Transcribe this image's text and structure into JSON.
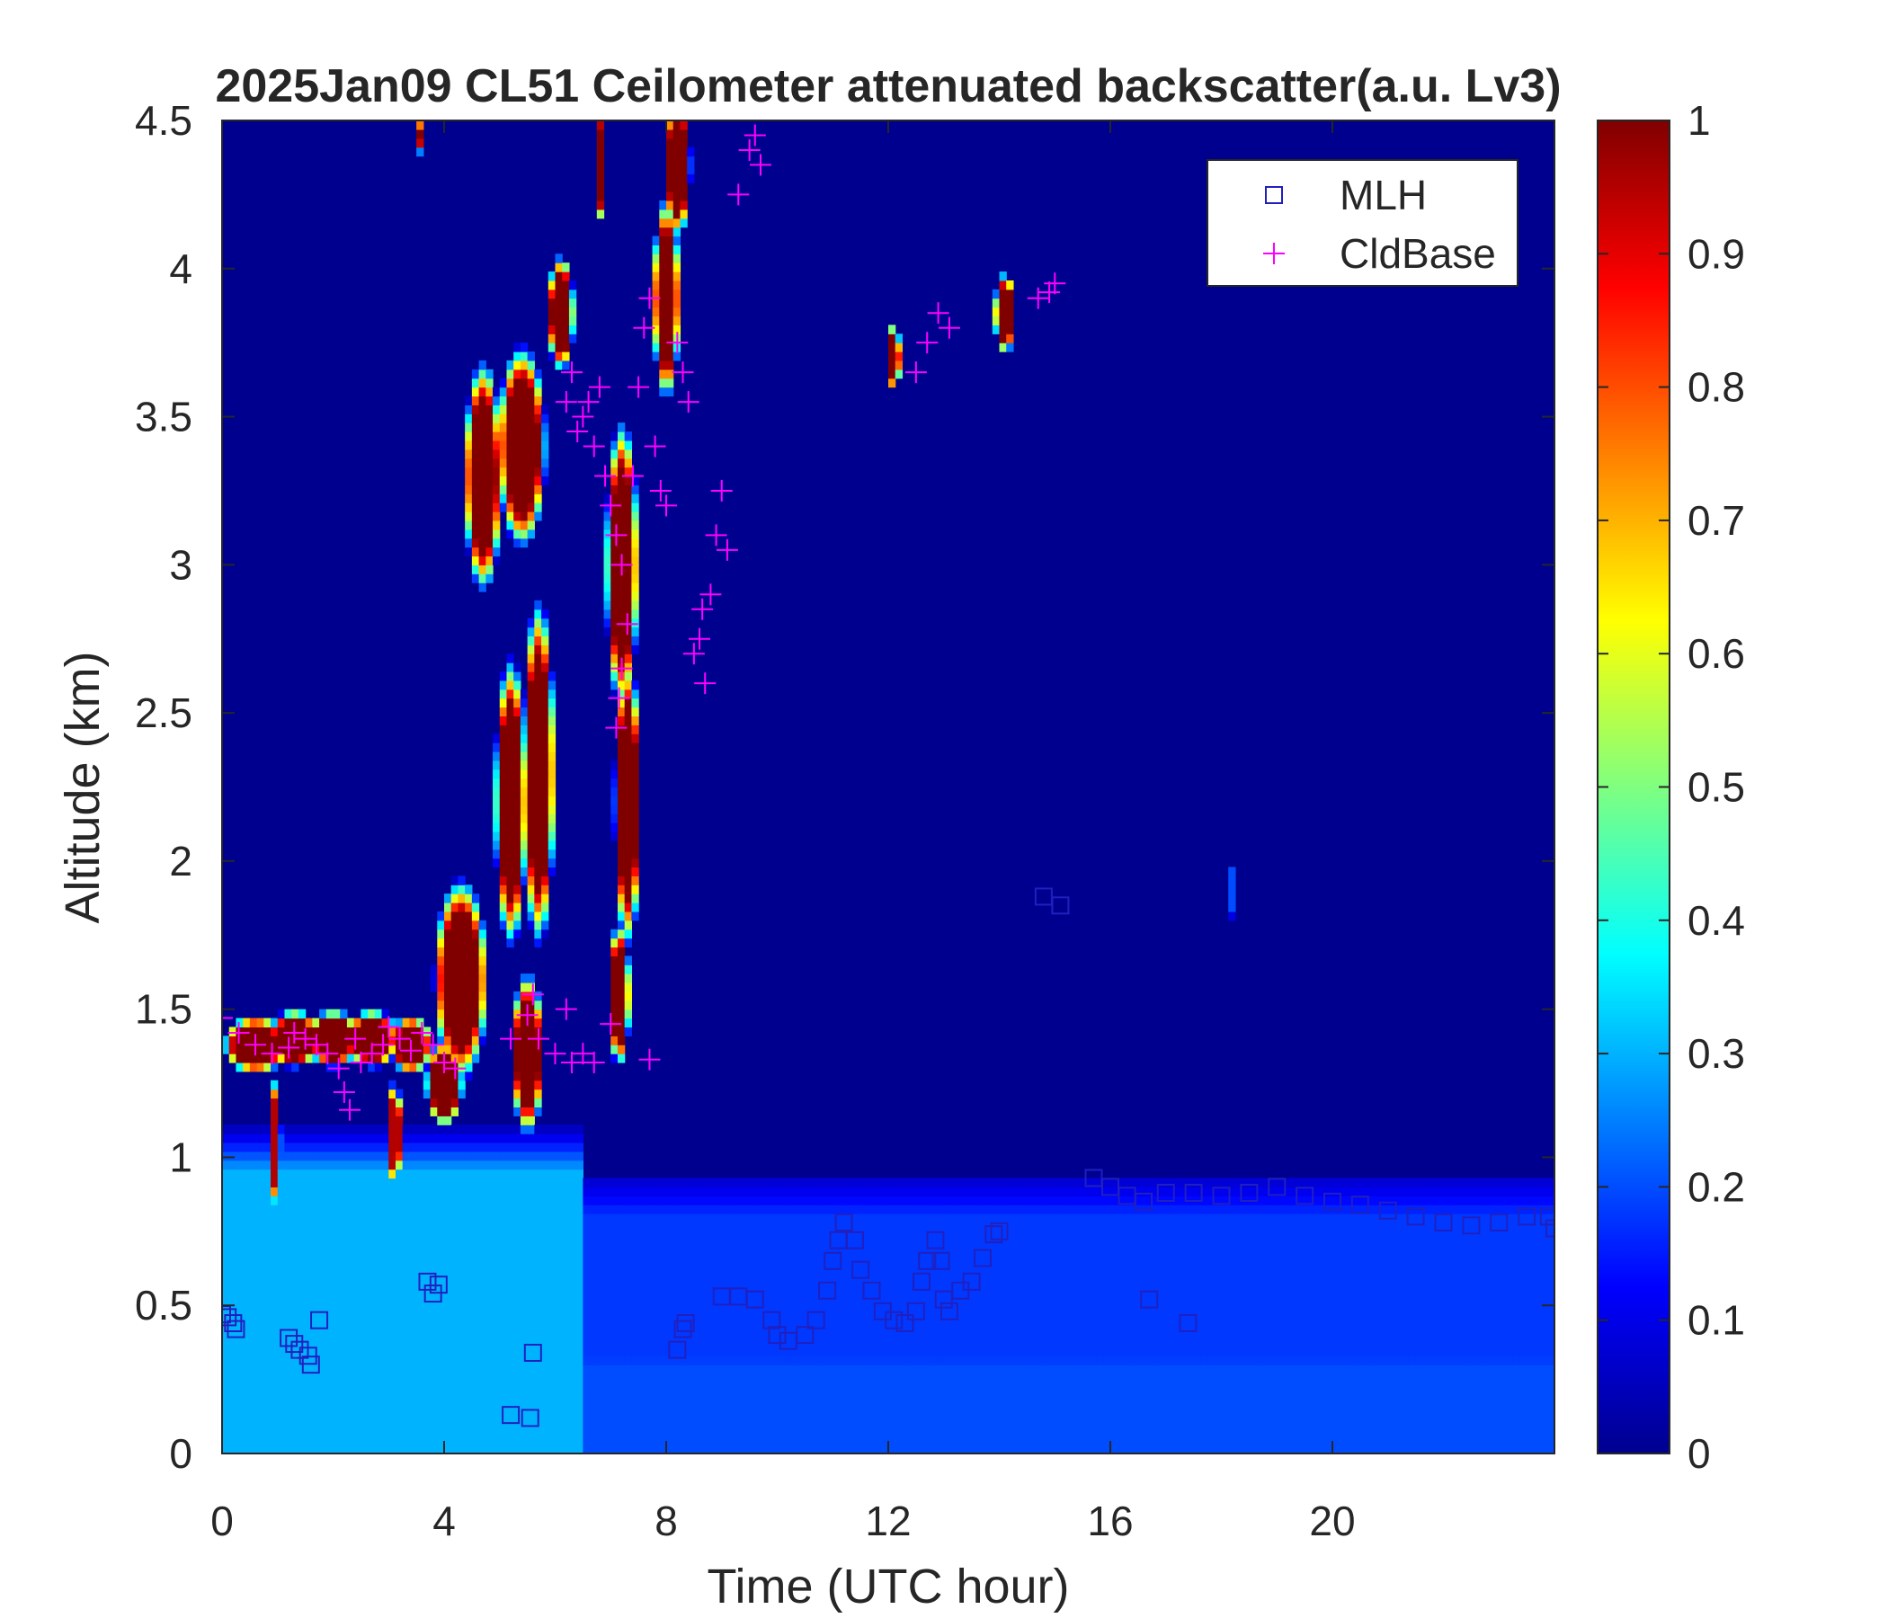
{
  "chart_data": {
    "type": "heatmap",
    "title": "2025Jan09 CL51 Ceilometer attenuated backscatter(a.u. Lv3)",
    "xlabel": "Time (UTC hour)",
    "ylabel": "Altitude (km)",
    "xlim": [
      0,
      24
    ],
    "ylim": [
      0,
      4.5
    ],
    "xticks": [
      "0",
      "4",
      "8",
      "12",
      "16",
      "20"
    ],
    "xtick_values": [
      0,
      4,
      8,
      12,
      16,
      20
    ],
    "yticks": [
      "0",
      "0.5",
      "1",
      "1.5",
      "2",
      "2.5",
      "3",
      "3.5",
      "4",
      "4.5"
    ],
    "ytick_values": [
      0,
      0.5,
      1,
      1.5,
      2,
      2.5,
      3,
      3.5,
      4,
      4.5
    ],
    "colorbar": {
      "colormap": "jet",
      "range": [
        0,
        1
      ],
      "ticks": [
        "0",
        "0.1",
        "0.2",
        "0.3",
        "0.4",
        "0.5",
        "0.6",
        "0.7",
        "0.8",
        "0.9",
        "1"
      ],
      "tick_values": [
        0,
        0.1,
        0.2,
        0.3,
        0.4,
        0.5,
        0.6,
        0.7,
        0.8,
        0.9,
        1
      ]
    },
    "legend": {
      "placement": "top-right",
      "entries": [
        {
          "name": "MLH",
          "marker": "square",
          "color": "#2020c0"
        },
        {
          "name": "CldBase",
          "marker": "plus",
          "color": "#ff00ff"
        }
      ]
    },
    "background_level": 0.05,
    "boundary_layer": [
      {
        "t0": 0,
        "t1": 6.5,
        "top": 1.1,
        "value": 0.3
      },
      {
        "t0": 6.5,
        "t1": 24,
        "top": 0.95,
        "value": 0.18
      },
      {
        "t0": 0,
        "t1": 24,
        "top": 0.45,
        "value": 0.2
      }
    ],
    "clouds": [
      {
        "t": 0.6,
        "z": 1.38,
        "w": 0.6,
        "h": 0.1,
        "v": 1.0
      },
      {
        "t": 1.3,
        "z": 1.4,
        "w": 0.5,
        "h": 0.1,
        "v": 1.0
      },
      {
        "t": 2.0,
        "z": 1.4,
        "w": 0.5,
        "h": 0.1,
        "v": 1.0
      },
      {
        "t": 2.7,
        "z": 1.4,
        "w": 0.5,
        "h": 0.1,
        "v": 1.0
      },
      {
        "t": 3.4,
        "z": 1.38,
        "w": 0.4,
        "h": 0.1,
        "v": 1.0
      },
      {
        "t": 0.95,
        "z": 1.05,
        "w": 0.12,
        "h": 0.22,
        "v": 0.95
      },
      {
        "t": 3.1,
        "z": 1.08,
        "w": 0.15,
        "h": 0.18,
        "v": 0.95
      },
      {
        "t": 4.3,
        "z": 1.6,
        "w": 0.5,
        "h": 0.35,
        "v": 1.0
      },
      {
        "t": 4.0,
        "z": 1.25,
        "w": 0.35,
        "h": 0.15,
        "v": 1.0
      },
      {
        "t": 4.7,
        "z": 3.3,
        "w": 0.35,
        "h": 0.4,
        "v": 1.0
      },
      {
        "t": 5.4,
        "z": 3.4,
        "w": 0.45,
        "h": 0.35,
        "v": 1.0
      },
      {
        "t": 5.2,
        "z": 2.2,
        "w": 0.3,
        "h": 0.5,
        "v": 1.0
      },
      {
        "t": 5.7,
        "z": 2.3,
        "w": 0.3,
        "h": 0.6,
        "v": 1.0
      },
      {
        "t": 5.5,
        "z": 1.35,
        "w": 0.3,
        "h": 0.28,
        "v": 1.0
      },
      {
        "t": 6.1,
        "z": 3.85,
        "w": 0.25,
        "h": 0.2,
        "v": 1.0
      },
      {
        "t": 7.2,
        "z": 3.0,
        "w": 0.3,
        "h": 0.5,
        "v": 1.0
      },
      {
        "t": 7.3,
        "z": 2.2,
        "w": 0.25,
        "h": 0.5,
        "v": 1.0
      },
      {
        "t": 7.15,
        "z": 1.55,
        "w": 0.2,
        "h": 0.25,
        "v": 1.0
      },
      {
        "t": 8.0,
        "z": 3.9,
        "w": 0.25,
        "h": 0.35,
        "v": 1.0
      },
      {
        "t": 8.2,
        "z": 4.35,
        "w": 0.25,
        "h": 0.25,
        "v": 1.0
      },
      {
        "t": 6.8,
        "z": 4.35,
        "w": 0.08,
        "h": 0.2,
        "v": 1.0
      },
      {
        "t": 3.6,
        "z": 4.45,
        "w": 0.06,
        "h": 0.08,
        "v": 1.0
      },
      {
        "t": 12.1,
        "z": 3.7,
        "w": 0.12,
        "h": 0.12,
        "v": 1.0
      },
      {
        "t": 14.1,
        "z": 3.85,
        "w": 0.2,
        "h": 0.14,
        "v": 1.0
      },
      {
        "t": 18.2,
        "z": 1.9,
        "w": 0.08,
        "h": 0.1,
        "v": 0.2
      }
    ],
    "series": [
      {
        "name": "MLH",
        "points": [
          [
            0.0,
            0.47
          ],
          [
            0.1,
            0.46
          ],
          [
            0.2,
            0.44
          ],
          [
            0.25,
            0.42
          ],
          [
            1.2,
            0.39
          ],
          [
            1.3,
            0.37
          ],
          [
            1.4,
            0.35
          ],
          [
            1.55,
            0.33
          ],
          [
            1.6,
            0.3
          ],
          [
            1.75,
            0.45
          ],
          [
            3.7,
            0.58
          ],
          [
            3.9,
            0.57
          ],
          [
            3.8,
            0.54
          ],
          [
            5.2,
            0.13
          ],
          [
            5.6,
            0.34
          ],
          [
            5.55,
            0.12
          ],
          [
            8.2,
            0.35
          ],
          [
            8.3,
            0.42
          ],
          [
            8.35,
            0.44
          ],
          [
            9.0,
            0.53
          ],
          [
            9.3,
            0.53
          ],
          [
            9.6,
            0.52
          ],
          [
            9.9,
            0.45
          ],
          [
            10.0,
            0.4
          ],
          [
            10.2,
            0.38
          ],
          [
            10.5,
            0.4
          ],
          [
            10.7,
            0.45
          ],
          [
            10.9,
            0.55
          ],
          [
            11.0,
            0.65
          ],
          [
            11.1,
            0.72
          ],
          [
            11.2,
            0.78
          ],
          [
            11.4,
            0.72
          ],
          [
            11.5,
            0.62
          ],
          [
            11.7,
            0.55
          ],
          [
            11.9,
            0.48
          ],
          [
            12.1,
            0.45
          ],
          [
            12.3,
            0.44
          ],
          [
            12.5,
            0.48
          ],
          [
            12.6,
            0.58
          ],
          [
            12.7,
            0.65
          ],
          [
            12.85,
            0.72
          ],
          [
            12.95,
            0.65
          ],
          [
            13.0,
            0.52
          ],
          [
            13.1,
            0.48
          ],
          [
            13.3,
            0.55
          ],
          [
            13.5,
            0.58
          ],
          [
            13.7,
            0.66
          ],
          [
            13.9,
            0.74
          ],
          [
            14.0,
            0.75
          ],
          [
            14.8,
            1.88
          ],
          [
            15.1,
            1.85
          ],
          [
            15.7,
            0.93
          ],
          [
            16.0,
            0.9
          ],
          [
            16.3,
            0.87
          ],
          [
            16.6,
            0.85
          ],
          [
            16.7,
            0.52
          ],
          [
            17.4,
            0.44
          ],
          [
            17.0,
            0.88
          ],
          [
            17.5,
            0.88
          ],
          [
            18.0,
            0.87
          ],
          [
            18.5,
            0.88
          ],
          [
            19.0,
            0.9
          ],
          [
            19.5,
            0.87
          ],
          [
            20.0,
            0.85
          ],
          [
            20.5,
            0.84
          ],
          [
            21.0,
            0.82
          ],
          [
            21.5,
            0.8
          ],
          [
            22.0,
            0.78
          ],
          [
            22.5,
            0.77
          ],
          [
            23.0,
            0.78
          ],
          [
            23.5,
            0.8
          ],
          [
            23.9,
            0.8
          ],
          [
            24.0,
            0.76
          ]
        ]
      },
      {
        "name": "CldBase",
        "points": [
          [
            0.0,
            1.47
          ],
          [
            0.3,
            1.42
          ],
          [
            0.6,
            1.38
          ],
          [
            0.9,
            1.35
          ],
          [
            1.2,
            1.37
          ],
          [
            1.3,
            1.42
          ],
          [
            1.5,
            1.4
          ],
          [
            1.7,
            1.38
          ],
          [
            1.9,
            1.35
          ],
          [
            2.1,
            1.3
          ],
          [
            2.2,
            1.22
          ],
          [
            2.3,
            1.16
          ],
          [
            2.4,
            1.4
          ],
          [
            2.5,
            1.32
          ],
          [
            2.7,
            1.35
          ],
          [
            2.9,
            1.38
          ],
          [
            3.0,
            1.44
          ],
          [
            3.2,
            1.4
          ],
          [
            3.4,
            1.36
          ],
          [
            3.6,
            1.42
          ],
          [
            3.8,
            1.38
          ],
          [
            4.0,
            1.32
          ],
          [
            4.2,
            1.3
          ],
          [
            5.2,
            1.4
          ],
          [
            5.5,
            1.48
          ],
          [
            5.6,
            1.55
          ],
          [
            5.7,
            1.4
          ],
          [
            6.0,
            1.35
          ],
          [
            6.2,
            1.5
          ],
          [
            6.3,
            1.32
          ],
          [
            6.5,
            1.35
          ],
          [
            6.7,
            1.32
          ],
          [
            7.0,
            1.45
          ],
          [
            7.7,
            1.33
          ],
          [
            6.2,
            3.55
          ],
          [
            6.3,
            3.65
          ],
          [
            6.4,
            3.45
          ],
          [
            6.5,
            3.5
          ],
          [
            6.6,
            3.55
          ],
          [
            6.7,
            3.4
          ],
          [
            6.8,
            3.6
          ],
          [
            6.9,
            3.3
          ],
          [
            7.0,
            3.2
          ],
          [
            7.1,
            3.1
          ],
          [
            7.2,
            3.0
          ],
          [
            7.3,
            2.8
          ],
          [
            7.2,
            2.65
          ],
          [
            7.1,
            2.45
          ],
          [
            7.15,
            2.55
          ],
          [
            7.4,
            3.3
          ],
          [
            7.5,
            3.6
          ],
          [
            7.6,
            3.8
          ],
          [
            7.7,
            3.9
          ],
          [
            7.8,
            3.4
          ],
          [
            7.9,
            3.25
          ],
          [
            8.0,
            3.2
          ],
          [
            8.2,
            3.75
          ],
          [
            8.3,
            3.65
          ],
          [
            8.4,
            3.55
          ],
          [
            8.5,
            2.7
          ],
          [
            8.6,
            2.75
          ],
          [
            8.65,
            2.85
          ],
          [
            8.7,
            2.6
          ],
          [
            8.8,
            2.9
          ],
          [
            8.9,
            3.1
          ],
          [
            9.0,
            3.25
          ],
          [
            9.1,
            3.05
          ],
          [
            9.3,
            4.25
          ],
          [
            9.5,
            4.4
          ],
          [
            9.6,
            4.45
          ],
          [
            9.7,
            4.35
          ],
          [
            12.5,
            3.65
          ],
          [
            12.7,
            3.75
          ],
          [
            12.9,
            3.85
          ],
          [
            13.1,
            3.8
          ],
          [
            14.7,
            3.9
          ],
          [
            14.9,
            3.92
          ],
          [
            15.0,
            3.95
          ]
        ]
      }
    ]
  }
}
